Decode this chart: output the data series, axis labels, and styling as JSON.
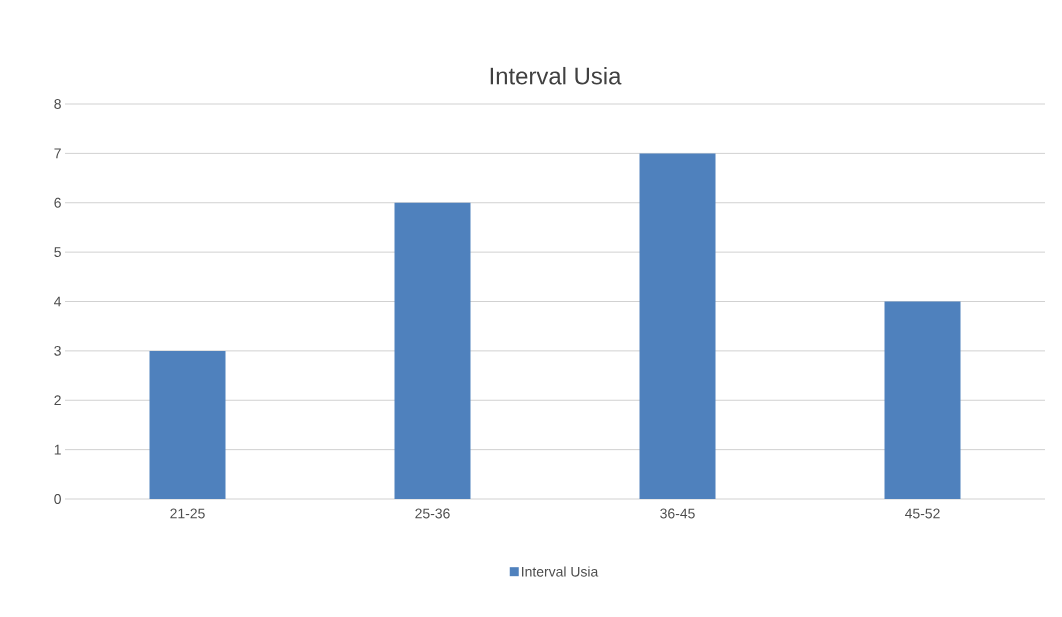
{
  "chart_data": {
    "type": "bar",
    "title": "Interval Usia",
    "categories": [
      "21-25",
      "25-36",
      "36-45",
      "45-52"
    ],
    "series": [
      {
        "name": "Interval Usia",
        "color": "#4f81bd",
        "values": [
          3,
          6,
          7,
          4
        ]
      }
    ],
    "ylim": [
      0,
      8
    ],
    "yticks": [
      0,
      1,
      2,
      3,
      4,
      5,
      6,
      7,
      8
    ],
    "grid": "y",
    "legend": "bottom"
  }
}
